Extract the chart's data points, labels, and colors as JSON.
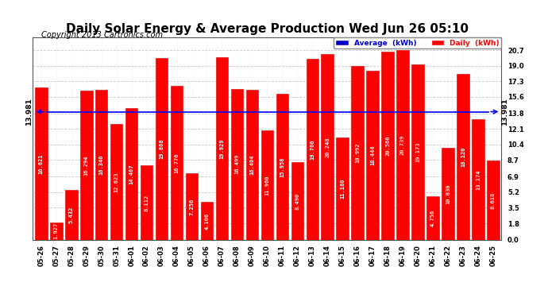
{
  "title": "Daily Solar Energy & Average Production Wed Jun 26 05:10",
  "copyright": "Copyright 2013 Cartronics.com",
  "categories": [
    "05-26",
    "05-27",
    "05-28",
    "05-29",
    "05-30",
    "05-31",
    "06-01",
    "06-02",
    "06-03",
    "06-04",
    "06-05",
    "06-06",
    "06-07",
    "06-08",
    "06-09",
    "06-10",
    "06-11",
    "06-12",
    "06-13",
    "06-14",
    "06-15",
    "06-16",
    "06-17",
    "06-18",
    "06-19",
    "06-20",
    "06-21",
    "06-22",
    "06-23",
    "06-24",
    "06-25"
  ],
  "values": [
    16.621,
    1.927,
    5.432,
    16.294,
    16.34,
    12.623,
    14.407,
    8.112,
    19.868,
    16.776,
    7.256,
    4.106,
    19.929,
    16.499,
    16.404,
    11.96,
    15.958,
    8.49,
    19.766,
    20.248,
    11.18,
    18.992,
    18.444,
    20.566,
    20.739,
    19.173,
    4.756,
    10.03,
    18.12,
    13.174,
    8.618
  ],
  "value_labels": [
    "16.621",
    "1.927",
    "5.432",
    "16.294",
    "16.340",
    "12.623",
    "14.407",
    "8.112",
    "19.868",
    "16.776",
    "7.256",
    "4.106",
    "19.929",
    "16.499",
    "16.404",
    "11.960",
    "15.958",
    "8.490",
    "19.766",
    "20.248",
    "11.180",
    "18.992",
    "18.444",
    "20.566",
    "20.739",
    "19.173",
    "4.756",
    "10.030",
    "18.120",
    "13.174",
    "8.618"
  ],
  "average": 13.981,
  "bar_color": "#ff0000",
  "bar_edge_color": "#cc0000",
  "avg_line_color": "#0000ff",
  "background_color": "#ffffff",
  "plot_bg_color": "#ffffff",
  "grid_color": "#bbbbbb",
  "title_fontsize": 11,
  "copyright_fontsize": 7,
  "tick_label_fontsize": 6,
  "value_fontsize": 5,
  "ylim": [
    0.0,
    22.1
  ],
  "yticks": [
    0.0,
    1.8,
    3.5,
    5.2,
    6.9,
    8.7,
    10.4,
    12.1,
    13.8,
    15.6,
    17.3,
    19.0,
    20.7
  ],
  "avg_label": "13.981",
  "legend_avg_color": "#0000cc",
  "legend_daily_color": "#ff0000"
}
